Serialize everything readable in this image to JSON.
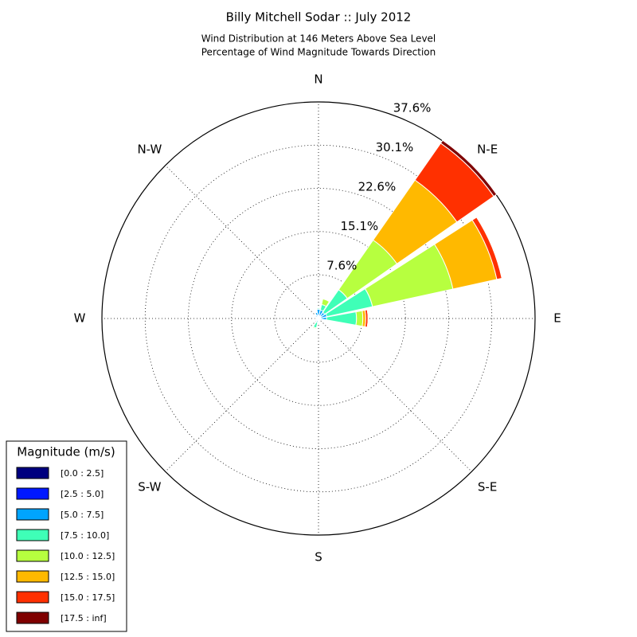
{
  "chart_data": {
    "type": "windrose",
    "title": "Billy Mitchell Sodar :: July 2012",
    "subtitle": [
      "Wind Distribution at 146 Meters Above Sea Level",
      "Percentage of Wind Magnitude Towards Direction"
    ],
    "legend_title": "Magnitude (m/s)",
    "x": [
      0,
      22.5,
      45,
      67.5,
      90,
      112.5,
      135,
      157.5,
      180,
      202.5,
      225,
      247.5,
      270,
      292.5,
      315,
      337.5
    ],
    "xticks": [
      {
        "value": 0,
        "label": "N"
      },
      {
        "value": 45,
        "label": "N-E"
      },
      {
        "value": 90,
        "label": "E"
      },
      {
        "value": 135,
        "label": "S-E"
      },
      {
        "value": 180,
        "label": "S"
      },
      {
        "value": 225,
        "label": "S-W"
      },
      {
        "value": 270,
        "label": "W"
      },
      {
        "value": 315,
        "label": "N-W"
      }
    ],
    "ylim": [
      0,
      37.6
    ],
    "yticks": [
      {
        "value": 7.6,
        "label": "7.6%"
      },
      {
        "value": 15.1,
        "label": "15.1%"
      },
      {
        "value": 22.6,
        "label": "22.6%"
      },
      {
        "value": 30.1,
        "label": "30.1%"
      },
      {
        "value": 37.6,
        "label": "37.6%"
      }
    ],
    "grid": true,
    "legend_position": "lower left",
    "series": [
      {
        "name": "[0.0 : 2.5]",
        "color": "#00007f",
        "values": [
          0.1,
          0.1,
          0.1,
          0.1,
          0.1,
          0.1,
          0.1,
          0.1,
          0.1,
          0.1,
          0.1,
          0.1,
          0.1,
          0.1,
          0.1,
          0.1
        ]
      },
      {
        "name": "[2.5 : 5.0]",
        "color": "#0018ff",
        "values": [
          0.5,
          0.4,
          0.4,
          0.3,
          0.3,
          0.2,
          0.1,
          0.1,
          0.1,
          0.2,
          0.2,
          0.2,
          0.2,
          0.2,
          0.3,
          0.4
        ]
      },
      {
        "name": "[5.0 : 7.5]",
        "color": "#00a4ff",
        "values": [
          1.0,
          1.0,
          0.8,
          1.1,
          1.0,
          0.3,
          0.1,
          0.1,
          0.2,
          0.4,
          0.2,
          0.2,
          0.2,
          0.2,
          0.3,
          0.6
        ]
      },
      {
        "name": "[7.5 : 10.0]",
        "color": "#3fffb7",
        "values": [
          0.2,
          1.0,
          4.8,
          8.1,
          5.2,
          0.1,
          0,
          0,
          0.2,
          1.0,
          0.1,
          0,
          0,
          0,
          0,
          0.1
        ]
      },
      {
        "name": "[10.0 : 12.5]",
        "color": "#b7ff3f",
        "values": [
          0,
          1.0,
          10.5,
          14.3,
          1.1,
          0,
          0,
          0,
          0,
          0.2,
          0,
          0,
          0,
          0,
          0,
          0
        ]
      },
      {
        "name": "[12.5 : 15.0]",
        "color": "#ffb900",
        "values": [
          0,
          0.1,
          12.7,
          7.8,
          0.5,
          0,
          0,
          0,
          0,
          0,
          0,
          0,
          0,
          0,
          0,
          0
        ]
      },
      {
        "name": "[15.0 : 17.5]",
        "color": "#ff3000",
        "values": [
          0,
          0,
          7.8,
          0.9,
          0.4,
          0,
          0,
          0,
          0,
          0,
          0,
          0,
          0,
          0,
          0,
          0
        ]
      },
      {
        "name": "[17.5 : inf]",
        "color": "#7f0000",
        "values": [
          0,
          0,
          0.6,
          0,
          0,
          0,
          0,
          0,
          0,
          0,
          0,
          0,
          0,
          0,
          0,
          0
        ]
      }
    ]
  }
}
